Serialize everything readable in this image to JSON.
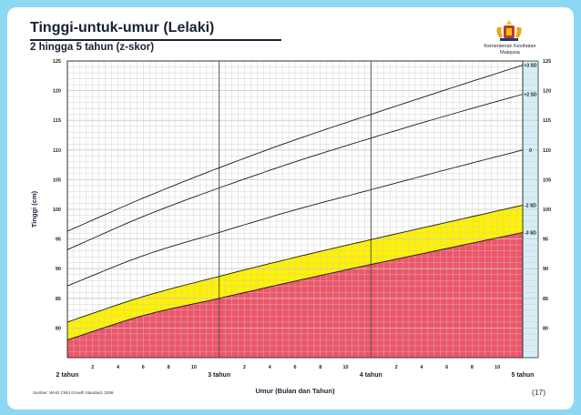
{
  "header": {
    "title": "Tinggi-untuk-umur (Lelaki)",
    "subtitle": "2 hingga 5 tahun (z-skor)",
    "ministry_line1": "Kementerian Kesihatan",
    "ministry_line2": "Malaysia"
  },
  "footer": {
    "source": "Sumber: WHO Child Growth Standard, 2006",
    "page_number": "(17)"
  },
  "colors": {
    "background": "#8dd8f2",
    "red_zone": "#ee5568",
    "yellow_zone": "#fff200",
    "grid_minor": "#c8c8c8",
    "grid_major": "#555555",
    "right_strip": "#d6eef8"
  },
  "chart_data": {
    "type": "line",
    "xlabel": "Umur (Bulan dan Tahun)",
    "ylabel": "Tinggi (cm)",
    "xlim": [
      24,
      60
    ],
    "ylim": [
      75,
      125
    ],
    "y_ticks": [
      "80",
      "85",
      "90",
      "95",
      "100",
      "105",
      "110",
      "115",
      "120",
      "125"
    ],
    "x_ticks": [
      {
        "month": 24,
        "label": "2 tahun",
        "major": true
      },
      {
        "month": 26,
        "label": "2"
      },
      {
        "month": 28,
        "label": "4"
      },
      {
        "month": 30,
        "label": "6"
      },
      {
        "month": 32,
        "label": "8"
      },
      {
        "month": 34,
        "label": "10"
      },
      {
        "month": 36,
        "label": "3 tahun",
        "major": true
      },
      {
        "month": 38,
        "label": "2"
      },
      {
        "month": 40,
        "label": "4"
      },
      {
        "month": 42,
        "label": "6"
      },
      {
        "month": 44,
        "label": "8"
      },
      {
        "month": 46,
        "label": "10"
      },
      {
        "month": 48,
        "label": "4 tahun",
        "major": true
      },
      {
        "month": 50,
        "label": "2"
      },
      {
        "month": 52,
        "label": "4"
      },
      {
        "month": 54,
        "label": "6"
      },
      {
        "month": 56,
        "label": "8"
      },
      {
        "month": 58,
        "label": "10"
      },
      {
        "month": 60,
        "label": "5 tahun",
        "major": true
      }
    ],
    "series": [
      {
        "name": "+3 SD",
        "x": [
          24,
          30,
          36,
          42,
          48,
          54,
          60
        ],
        "values": [
          96.3,
          101.9,
          107.0,
          111.7,
          116.0,
          120.2,
          124.3
        ]
      },
      {
        "name": "+2 SD",
        "x": [
          24,
          30,
          36,
          42,
          48,
          54,
          60
        ],
        "values": [
          93.2,
          98.8,
          103.6,
          108.0,
          112.0,
          115.8,
          119.4
        ]
      },
      {
        "name": "0",
        "x": [
          24,
          30,
          36,
          42,
          48,
          54,
          60
        ],
        "values": [
          87.1,
          92.2,
          96.1,
          99.9,
          103.3,
          106.7,
          110.0
        ]
      },
      {
        "name": "-2 SD",
        "x": [
          24,
          30,
          36,
          42,
          48,
          54,
          60
        ],
        "values": [
          81.0,
          85.3,
          88.7,
          91.9,
          94.9,
          97.8,
          100.7
        ]
      },
      {
        "name": "-3 SD",
        "x": [
          24,
          30,
          36,
          42,
          48,
          54,
          60
        ],
        "values": [
          78.0,
          82.1,
          85.0,
          87.9,
          90.7,
          93.4,
          96.1
        ]
      }
    ]
  }
}
